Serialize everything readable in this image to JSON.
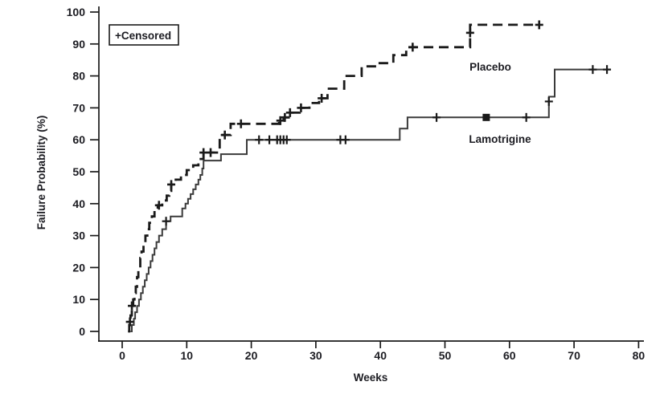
{
  "chart_data": {
    "type": "line",
    "subtype": "kaplan-meier-step",
    "title": "",
    "xlabel": "Weeks",
    "ylabel": "Failure Probability (%)",
    "legend_label": "+Censored",
    "xlim": [
      0,
      80
    ],
    "ylim": [
      0,
      100
    ],
    "xticks": [
      0,
      10,
      20,
      30,
      40,
      50,
      60,
      70,
      80
    ],
    "yticks": [
      0,
      10,
      20,
      30,
      40,
      50,
      60,
      70,
      80,
      90,
      100
    ],
    "grid": false,
    "legend_position": "top-left-inside-box",
    "series": [
      {
        "name": "Placebo",
        "style": "dashed",
        "label_week": 57.0,
        "label_pct": 84.0,
        "end_week": 64.6,
        "points": [
          [
            0.9,
            0
          ],
          [
            1.1,
            2
          ],
          [
            1.3,
            5
          ],
          [
            1.5,
            8
          ],
          [
            1.7,
            10
          ],
          [
            1.9,
            12
          ],
          [
            2.1,
            14
          ],
          [
            2.3,
            17
          ],
          [
            2.5,
            20
          ],
          [
            2.8,
            23
          ],
          [
            3.0,
            25
          ],
          [
            3.3,
            27
          ],
          [
            3.6,
            30
          ],
          [
            3.9,
            32
          ],
          [
            4.2,
            34
          ],
          [
            4.6,
            36
          ],
          [
            5.0,
            38
          ],
          [
            5.5,
            39.5
          ],
          [
            6.2,
            41
          ],
          [
            6.9,
            42.5
          ],
          [
            7.3,
            44
          ],
          [
            7.6,
            46
          ],
          [
            8.3,
            47.5
          ],
          [
            9.1,
            49
          ],
          [
            10.0,
            50.5
          ],
          [
            11.0,
            52
          ],
          [
            11.8,
            54
          ],
          [
            12.6,
            56
          ],
          [
            15.1,
            61.5
          ],
          [
            16.8,
            65
          ],
          [
            24.3,
            66
          ],
          [
            25.0,
            67
          ],
          [
            25.8,
            68.5
          ],
          [
            27.5,
            70
          ],
          [
            29.0,
            71.5
          ],
          [
            30.5,
            73
          ],
          [
            31.8,
            76
          ],
          [
            34.4,
            80
          ],
          [
            37.1,
            83
          ],
          [
            39.6,
            84
          ],
          [
            42.0,
            86.5
          ],
          [
            44.0,
            89
          ],
          [
            53.9,
            96
          ]
        ],
        "censored": [
          [
            1.2,
            3
          ],
          [
            1.5,
            8
          ],
          [
            5.7,
            39.5
          ],
          [
            7.6,
            46
          ],
          [
            12.6,
            56
          ],
          [
            13.7,
            56
          ],
          [
            15.9,
            61.5
          ],
          [
            18.4,
            65
          ],
          [
            24.5,
            66
          ],
          [
            25.2,
            67
          ],
          [
            26.0,
            68.5
          ],
          [
            27.7,
            70
          ],
          [
            30.9,
            73
          ],
          [
            45.0,
            89
          ],
          [
            53.9,
            93.5
          ],
          [
            64.6,
            96
          ]
        ]
      },
      {
        "name": "Lamotrigine",
        "style": "solid",
        "label_week": 58.5,
        "label_pct": 61.5,
        "end_week": 75.7,
        "points": [
          [
            1.3,
            0
          ],
          [
            1.5,
            2
          ],
          [
            1.8,
            4
          ],
          [
            2.0,
            6
          ],
          [
            2.3,
            8
          ],
          [
            2.6,
            10
          ],
          [
            2.9,
            12
          ],
          [
            3.2,
            14
          ],
          [
            3.5,
            16
          ],
          [
            3.8,
            18
          ],
          [
            4.1,
            20
          ],
          [
            4.4,
            22
          ],
          [
            4.7,
            24
          ],
          [
            5.0,
            26
          ],
          [
            5.3,
            28
          ],
          [
            5.7,
            30
          ],
          [
            6.2,
            32
          ],
          [
            6.8,
            34.5
          ],
          [
            7.5,
            36
          ],
          [
            9.3,
            38.5
          ],
          [
            9.8,
            40
          ],
          [
            10.2,
            41.5
          ],
          [
            10.6,
            43
          ],
          [
            11.0,
            44.5
          ],
          [
            11.4,
            46
          ],
          [
            11.8,
            47.5
          ],
          [
            12.1,
            49
          ],
          [
            12.4,
            51
          ],
          [
            12.6,
            53.5
          ],
          [
            15.3,
            55.5
          ],
          [
            19.3,
            60
          ],
          [
            43.0,
            63.5
          ],
          [
            44.2,
            67
          ],
          [
            66.1,
            73.5
          ],
          [
            67.0,
            82
          ]
        ],
        "censored": [
          [
            6.8,
            34.5
          ],
          [
            21.2,
            60
          ],
          [
            22.8,
            60
          ],
          [
            24.0,
            60
          ],
          [
            24.5,
            60
          ],
          [
            25.0,
            60
          ],
          [
            25.5,
            60
          ],
          [
            33.8,
            60
          ],
          [
            34.6,
            60
          ],
          [
            48.7,
            67
          ],
          [
            56.4,
            67,
            "double"
          ],
          [
            62.6,
            67
          ],
          [
            66.1,
            72
          ],
          [
            72.9,
            82
          ],
          [
            75.1,
            82
          ]
        ]
      }
    ]
  },
  "colors": {
    "line": "#1a1a1a",
    "solid_line": "#3a3a3a",
    "background": "#ffffff",
    "text": "#1c1c22"
  }
}
